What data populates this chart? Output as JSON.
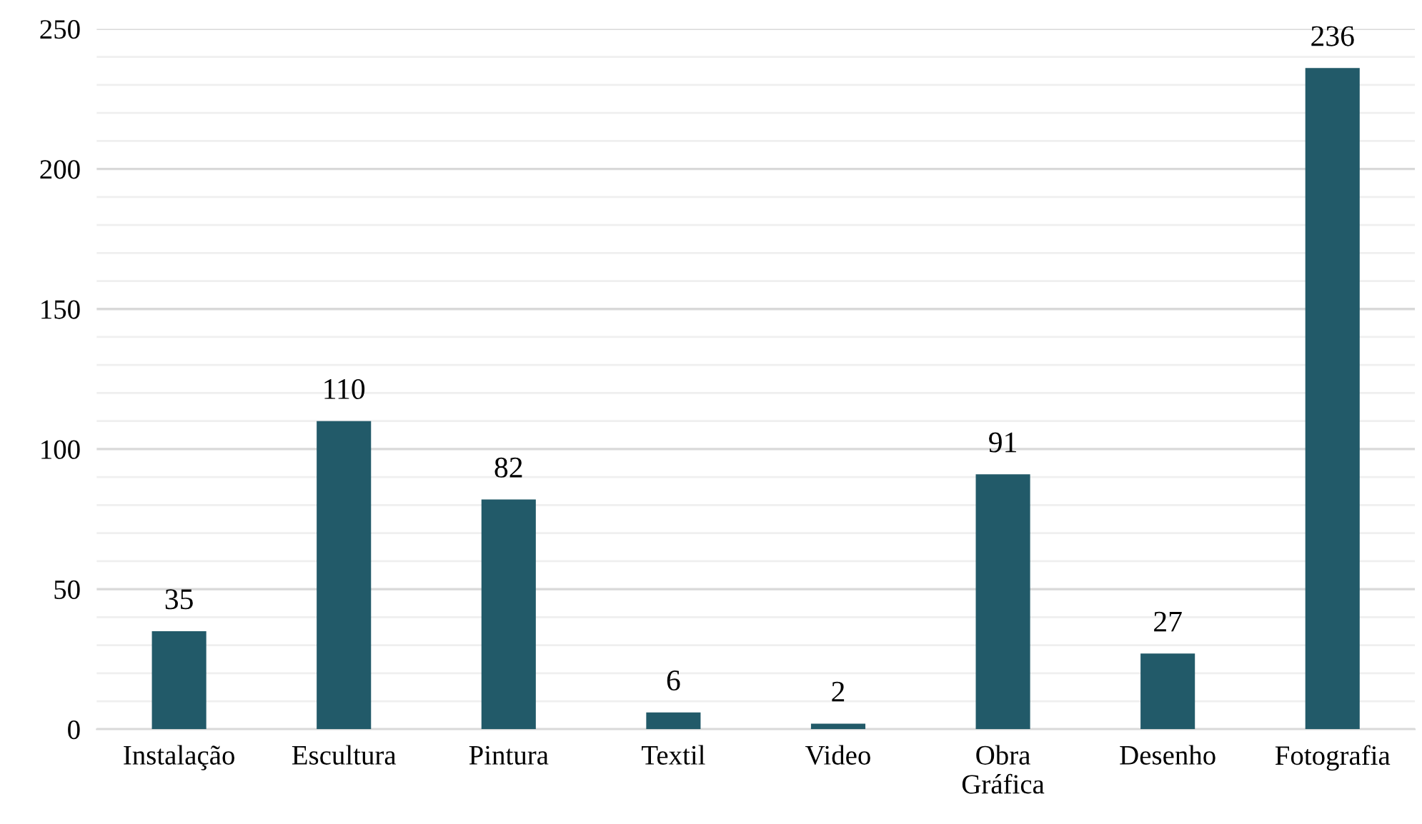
{
  "chart_data": {
    "type": "bar",
    "categories": [
      "Instalação",
      "Escultura",
      "Pintura",
      "Textil",
      "Video",
      "Obra\nGráfica",
      "Desenho",
      "Fotografia"
    ],
    "values": [
      35,
      110,
      82,
      6,
      2,
      91,
      27,
      236
    ],
    "color": "#225a69",
    "data_labels": true,
    "ylim": [
      0,
      250
    ],
    "yticks": [
      0,
      {
        "value": 10,
        "label": null
      },
      {
        "value": 20,
        "label": null
      },
      {
        "value": 30,
        "label": null
      },
      {
        "value": 40,
        "label": null
      },
      50,
      {
        "value": 60,
        "label": null
      },
      {
        "value": 70,
        "label": null
      },
      {
        "value": 80,
        "label": null
      },
      {
        "value": 90,
        "label": null
      },
      100,
      {
        "value": 110,
        "label": null
      },
      {
        "value": 120,
        "label": null
      },
      {
        "value": 130,
        "label": null
      },
      {
        "value": 140,
        "label": null
      },
      150,
      {
        "value": 160,
        "label": null
      },
      {
        "value": 170,
        "label": null
      },
      {
        "value": 180,
        "label": null
      },
      {
        "value": 190,
        "label": null
      },
      200,
      {
        "value": 210,
        "label": null
      },
      {
        "value": 220,
        "label": null
      },
      {
        "value": 230,
        "label": null
      },
      {
        "value": 240,
        "label": null
      },
      250
    ],
    "grid": "y"
  }
}
